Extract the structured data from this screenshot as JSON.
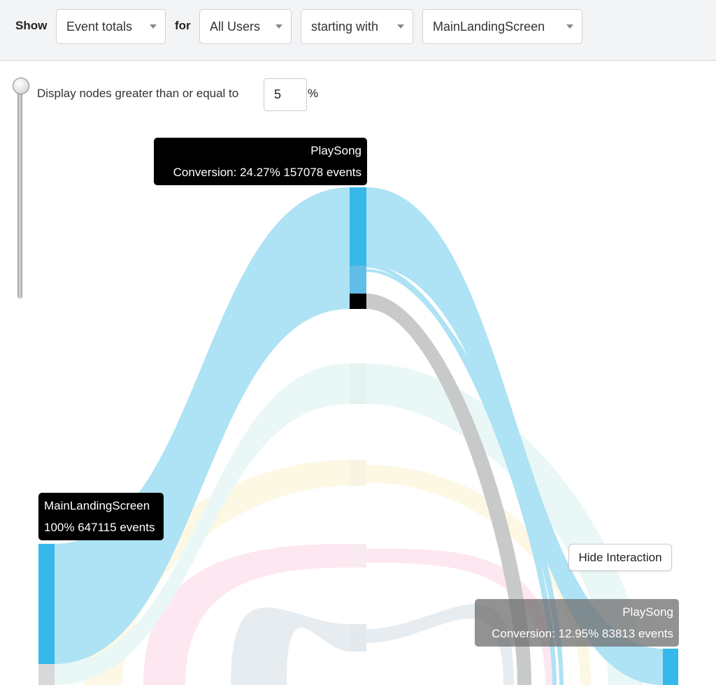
{
  "toolbar": {
    "show_label": "Show",
    "metric": "Event totals",
    "for_label": "for",
    "users": "All Users",
    "mode": "starting with",
    "event": "MainLandingScreen"
  },
  "threshold": {
    "label": "Display nodes greater than or equal to",
    "value": "5",
    "unit": "%",
    "slider_level_percent": 5
  },
  "nodes": {
    "top": {
      "name": "PlaySong",
      "stats": "Conversion: 24.27% 157078 events"
    },
    "root": {
      "name": "MainLandingScreen",
      "stats": "100% 647115 events"
    },
    "right": {
      "name": "PlaySong",
      "stats": "Conversion: 12.95% 83813 events"
    }
  },
  "hide_interaction": "Hide Interaction",
  "colors": {
    "flow_blue": "#aee2f5",
    "node_blue": "#36b8ea",
    "mint": "#e9f8f6",
    "yellow": "#fdf8e4",
    "pink": "#fde7f1",
    "greyblue": "#e7ecf0",
    "grey": "#c8c9c9"
  }
}
